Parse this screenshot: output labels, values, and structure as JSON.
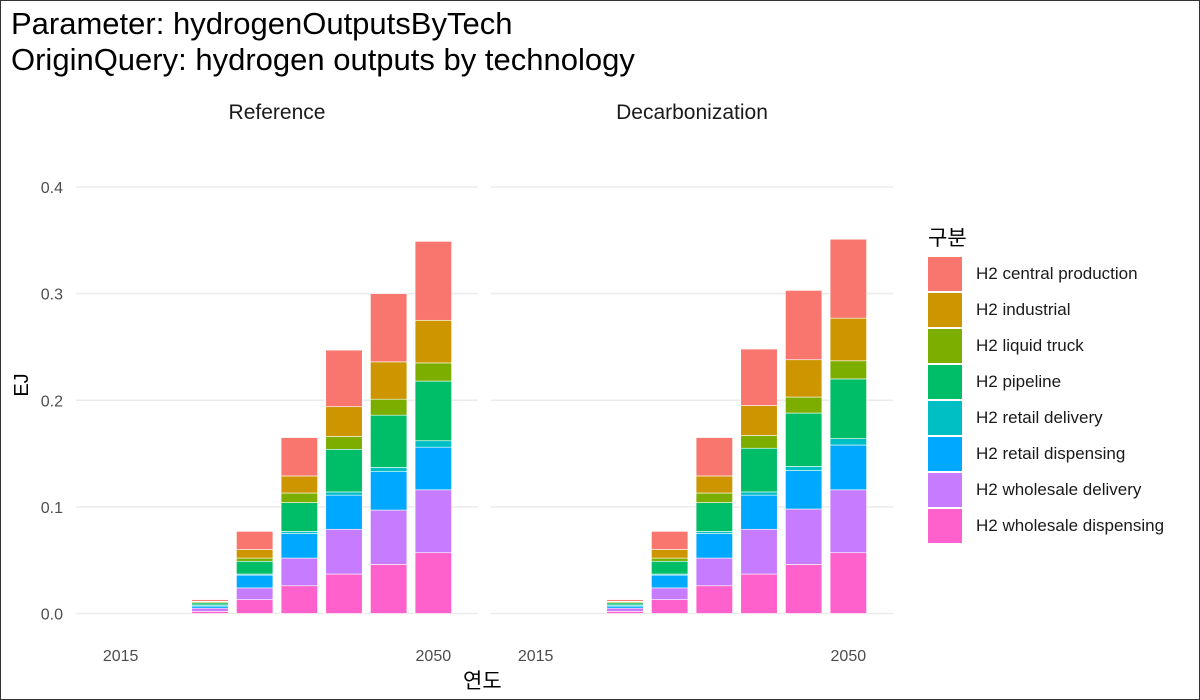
{
  "header": {
    "line1": "Parameter: hydrogenOutputsByTech",
    "line2": "OriginQuery: hydrogen outputs by technology"
  },
  "chart_data": {
    "type": "bar",
    "stacked": true,
    "facets": [
      "Reference",
      "Decarbonization"
    ],
    "ylabel": "EJ",
    "xlabel": "연도",
    "ylim": [
      0,
      0.42
    ],
    "yticks": [
      "0.0",
      "0.1",
      "0.2",
      "0.3",
      "0.4"
    ],
    "ytick_values": [
      0.0,
      0.1,
      0.2,
      0.3,
      0.4
    ],
    "xlim": [
      2010,
      2055
    ],
    "xticks": [
      "2015",
      "2050"
    ],
    "xtick_values": [
      2015,
      2050
    ],
    "legend_title": "구분",
    "legend_position": "right",
    "grid": true,
    "series_order_bottom_to_top": [
      "H2 wholesale dispensing",
      "H2 wholesale delivery",
      "H2 retail dispensing",
      "H2 retail delivery",
      "H2 pipeline",
      "H2 liquid truck",
      "H2 industrial",
      "H2 central production"
    ],
    "series": [
      {
        "name": "H2 central production",
        "color": "#F8766D"
      },
      {
        "name": "H2 industrial",
        "color": "#CD9600"
      },
      {
        "name": "H2 liquid truck",
        "color": "#7CAE00"
      },
      {
        "name": "H2 pipeline",
        "color": "#00BE67"
      },
      {
        "name": "H2 retail delivery",
        "color": "#00BFC4"
      },
      {
        "name": "H2 retail dispensing",
        "color": "#00A9FF"
      },
      {
        "name": "H2 wholesale delivery",
        "color": "#C77CFF"
      },
      {
        "name": "H2 wholesale dispensing",
        "color": "#FF61CC"
      }
    ],
    "panels": [
      {
        "facet": "Reference",
        "x": [
          2025,
          2030,
          2035,
          2040,
          2045,
          2050
        ],
        "stacks": [
          [
            0.002,
            0.003,
            0.002,
            0.001,
            0.002,
            0.001,
            0.0005,
            0.0015
          ],
          [
            0.013,
            0.011,
            0.012,
            0.001,
            0.012,
            0.003,
            0.008,
            0.017
          ],
          [
            0.026,
            0.026,
            0.023,
            0.002,
            0.027,
            0.009,
            0.016,
            0.036
          ],
          [
            0.037,
            0.042,
            0.032,
            0.003,
            0.04,
            0.012,
            0.028,
            0.053
          ],
          [
            0.046,
            0.051,
            0.036,
            0.004,
            0.049,
            0.015,
            0.035,
            0.064
          ],
          [
            0.057,
            0.059,
            0.04,
            0.006,
            0.056,
            0.017,
            0.04,
            0.074
          ]
        ]
      },
      {
        "facet": "Decarbonization",
        "x": [
          2025,
          2030,
          2035,
          2040,
          2045,
          2050
        ],
        "stacks": [
          [
            0.002,
            0.003,
            0.002,
            0.001,
            0.002,
            0.001,
            0.0005,
            0.0015
          ],
          [
            0.013,
            0.011,
            0.012,
            0.001,
            0.012,
            0.003,
            0.008,
            0.017
          ],
          [
            0.026,
            0.026,
            0.023,
            0.002,
            0.027,
            0.009,
            0.016,
            0.036
          ],
          [
            0.037,
            0.042,
            0.032,
            0.003,
            0.041,
            0.012,
            0.028,
            0.053
          ],
          [
            0.046,
            0.052,
            0.036,
            0.004,
            0.05,
            0.015,
            0.035,
            0.065
          ],
          [
            0.057,
            0.059,
            0.042,
            0.006,
            0.056,
            0.017,
            0.04,
            0.074
          ]
        ]
      }
    ]
  }
}
